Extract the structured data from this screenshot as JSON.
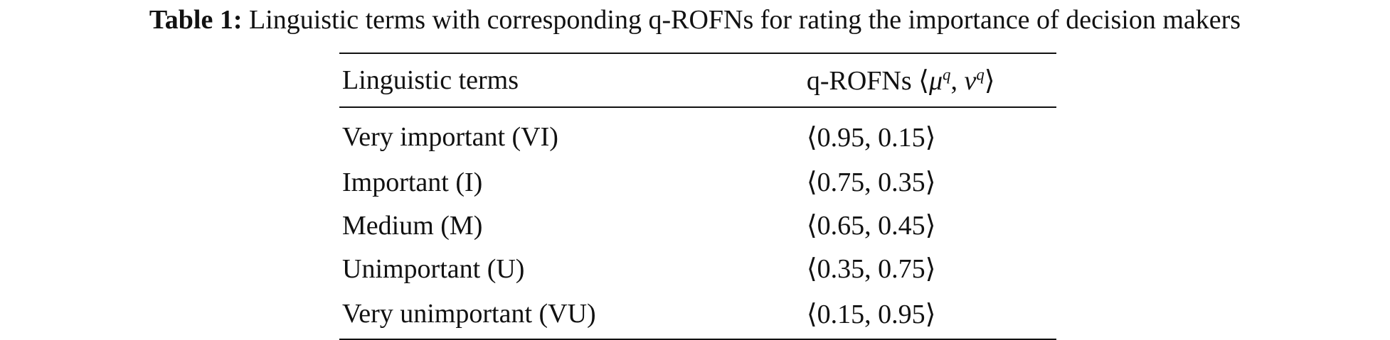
{
  "caption": {
    "label": "Table 1:",
    "text": "Linguistic terms with corresponding q-ROFNs for rating the importance of decision makers"
  },
  "table": {
    "headers": {
      "term": "Linguistic terms",
      "value_prefix": "q-ROFNs ⟨",
      "mu": "μ",
      "mu_exp": "q",
      "sep": ", ",
      "nu": "ν",
      "nu_exp": "q",
      "value_suffix": "⟩"
    },
    "rows": [
      {
        "term": "Very important (VI)",
        "value": "⟨0.95, 0.15⟩"
      },
      {
        "term": "Important (I)",
        "value": "⟨0.75, 0.35⟩"
      },
      {
        "term": "Medium (M)",
        "value": "⟨0.65, 0.45⟩"
      },
      {
        "term": "Unimportant (U)",
        "value": "⟨0.35, 0.75⟩"
      },
      {
        "term": "Very unimportant (VU)",
        "value": "⟨0.15, 0.95⟩"
      }
    ]
  }
}
